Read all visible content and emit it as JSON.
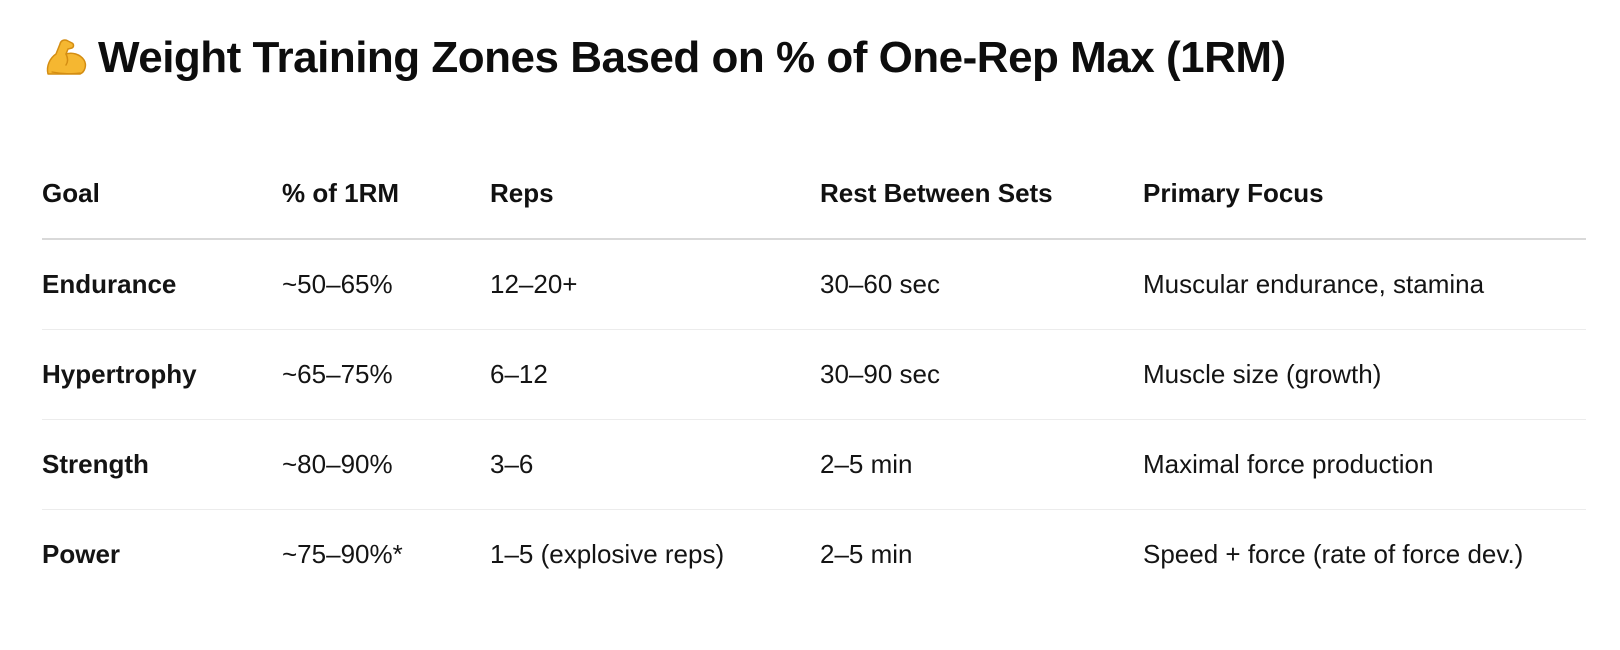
{
  "title": {
    "emoji_icon": "flexed-biceps-icon",
    "text": "Weight Training Zones Based on % of One-Rep Max (1RM)"
  },
  "table": {
    "headers": [
      "Goal",
      "% of 1RM",
      "Reps",
      "Rest Between Sets",
      "Primary Focus"
    ],
    "rows": [
      [
        "Endurance",
        "~50–65%",
        "12–20+",
        "30–60 sec",
        "Muscular endurance, stamina"
      ],
      [
        "Hypertrophy",
        "~65–75%",
        "6–12",
        "30–90 sec",
        "Muscle size (growth)"
      ],
      [
        "Strength",
        "~80–90%",
        "3–6",
        "2–5 min",
        "Maximal force production"
      ],
      [
        "Power",
        "~75–90%*",
        "1–5 (explosive reps)",
        "2–5 min",
        "Speed + force (rate of force dev.)"
      ]
    ]
  },
  "colors": {
    "text": "#111111",
    "header_rule": "#d9d9d9",
    "row_rule": "#ececec",
    "emoji": "#f5b731"
  }
}
